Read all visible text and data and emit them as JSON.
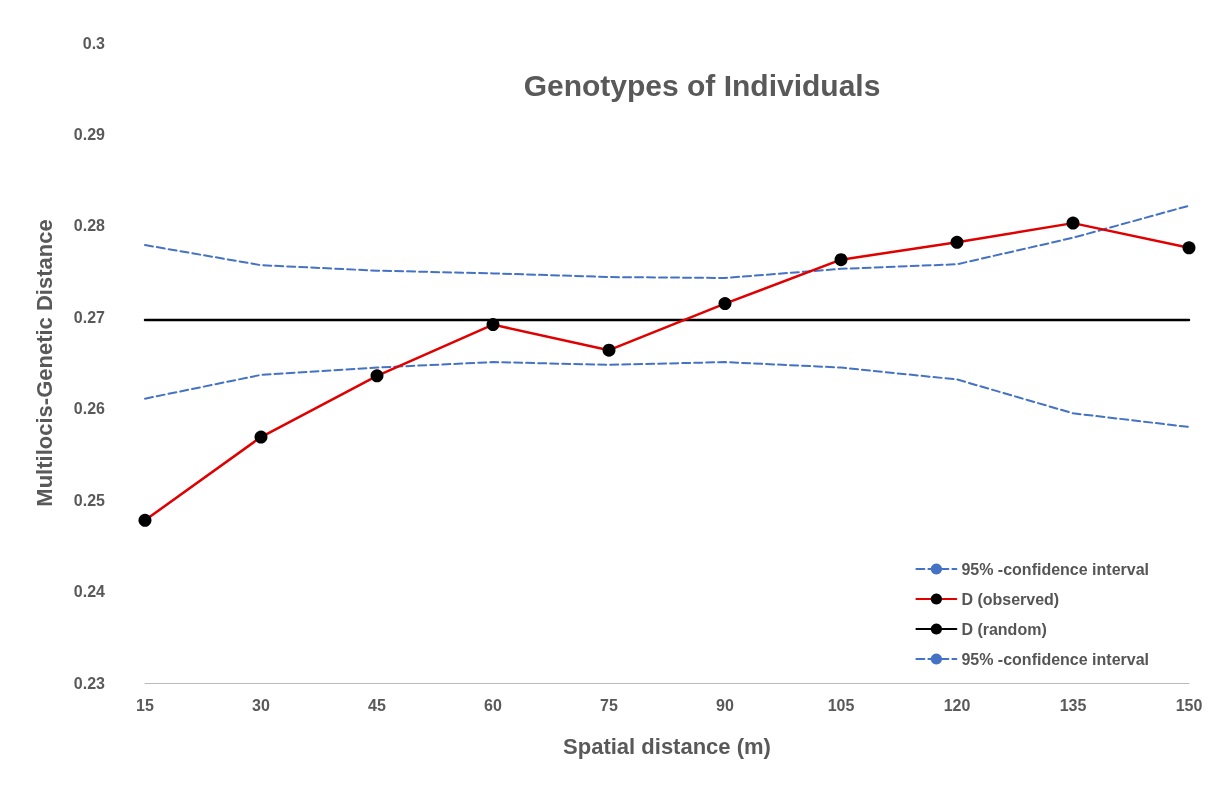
{
  "chart_data": {
    "type": "line",
    "title": "Genotypes of Individuals",
    "xlabel": "Spatial distance (m)",
    "ylabel": "Multilocis-Genetic Distance",
    "categories": [
      "15",
      "30",
      "45",
      "60",
      "75",
      "90",
      "105",
      "120",
      "135",
      "150"
    ],
    "ylim": [
      0.23,
      0.3
    ],
    "yticks": [
      0.23,
      0.24,
      0.25,
      0.26,
      0.27,
      0.28,
      0.29,
      {
        "value": 0.3,
        "label": "0.3"
      }
    ],
    "grid": false,
    "legend": "bottom right",
    "series": [
      {
        "name": "95% -confidence interval",
        "color": "#4472c4",
        "line_style": "dashed",
        "marker": "none",
        "values": [
          0.2779,
          0.2757,
          0.2751,
          0.2748,
          0.2744,
          0.2743,
          0.2753,
          0.2758,
          0.2787,
          0.2822
        ]
      },
      {
        "name": "D (observed)",
        "color": "#e00000",
        "line_style": "solid",
        "marker": "circle",
        "values": [
          0.2478,
          0.2569,
          0.2636,
          0.2692,
          0.2664,
          0.2715,
          0.2763,
          0.2782,
          0.2803,
          0.2776
        ]
      },
      {
        "name": "D (random)",
        "color": "#000000",
        "line_style": "solid",
        "marker": "none",
        "values": [
          0.2697,
          0.2697,
          0.2697,
          0.2697,
          0.2697,
          0.2697,
          0.2697,
          0.2697,
          0.2697,
          0.2697
        ]
      },
      {
        "name": "95% -confidence interval",
        "color": "#4472c4",
        "line_style": "dashed",
        "marker": "none",
        "values": [
          0.2611,
          0.2637,
          0.2645,
          0.2651,
          0.2648,
          0.2651,
          0.2645,
          0.2632,
          0.2595,
          0.258
        ]
      }
    ]
  }
}
